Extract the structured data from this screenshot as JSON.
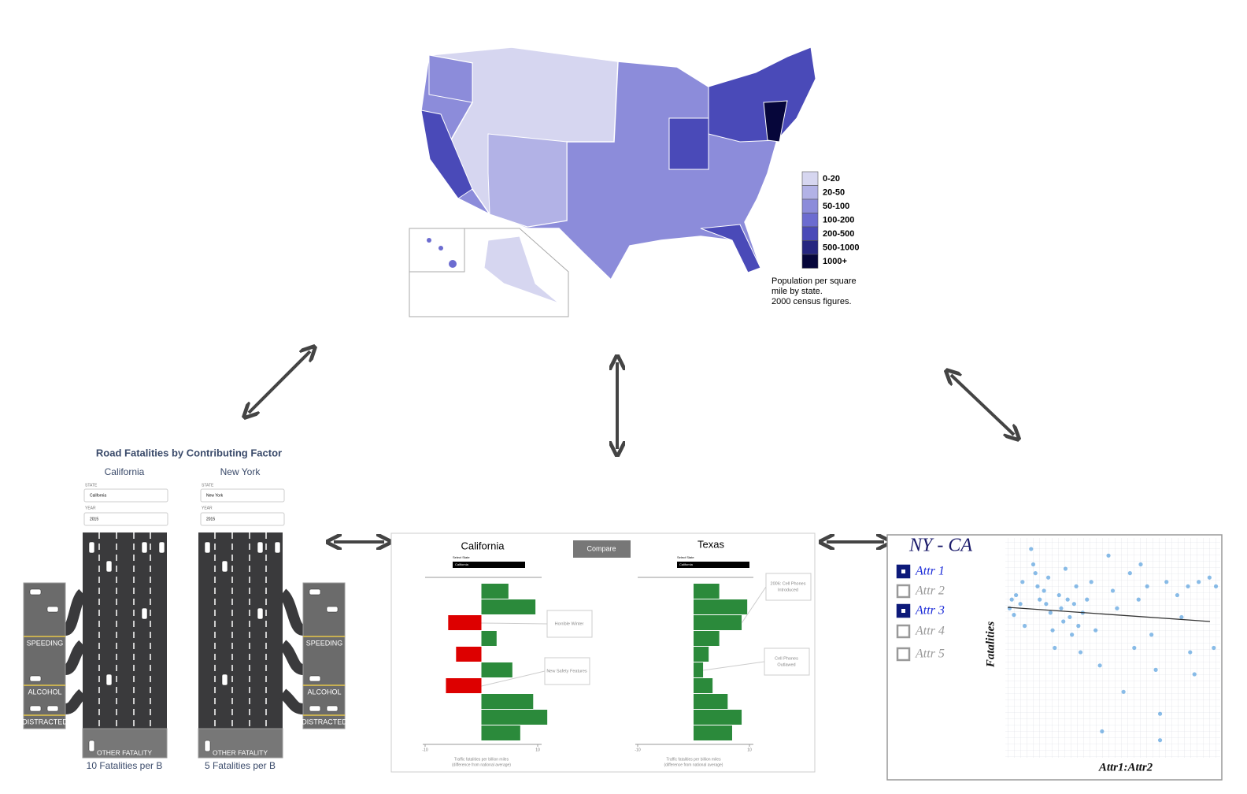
{
  "map": {
    "legend": [
      "0-20",
      "20-50",
      "50-100",
      "100-200",
      "200-500",
      "500-1000",
      "1000+"
    ],
    "legend_colors": [
      "#d6d6f0",
      "#b2b2e6",
      "#8c8cda",
      "#6c6cd0",
      "#4a4ab8",
      "#262680",
      "#06063a"
    ],
    "caption": [
      "Population per square",
      "mile by state.",
      "2000 census figures."
    ]
  },
  "road_panel": {
    "title": "Road Fatalities by Contributing Factor",
    "states": [
      {
        "name": "California",
        "state_label": "STATE",
        "state_value": "California",
        "year_label": "YEAR",
        "year_value": "2015",
        "lanes": [
          "SPEEDING",
          "ALCOHOL",
          "DISTRACTED"
        ],
        "other": "OTHER FATALITY",
        "footer": "10 Fatalities per B"
      },
      {
        "name": "New York",
        "state_label": "STATE",
        "state_value": "New York",
        "year_label": "YEAR",
        "year_value": "2015",
        "lanes": [
          "SPEEDING",
          "ALCOHOL",
          "DISTRACTED"
        ],
        "other": "OTHER FATALITY",
        "footer": "5 Fatalities per B"
      }
    ]
  },
  "compare_panel": {
    "button": "Compare",
    "positive_color": "#2b8a3b",
    "negative_color": "#dd0000",
    "charts": [
      {
        "title": "California",
        "select_label": "Select State",
        "select_value": "California",
        "values": [
          4.8,
          9.6,
          -5.9,
          2.7,
          -4.5,
          5.5,
          -6.3,
          9.2,
          11.7,
          6.9
        ],
        "annotations": [
          {
            "text": [
              "Horrible Winter"
            ],
            "bar": 2
          },
          {
            "text": [
              "New Safety Features"
            ],
            "bar": 6
          }
        ],
        "xlim": [
          -10,
          10
        ],
        "xticks": [
          -10,
          10
        ],
        "axis_label": [
          "Traffic fatalities per billion miles",
          "(difference from national average)"
        ]
      },
      {
        "title": "Texas",
        "select_label": "Select State",
        "select_value": "California",
        "values": [
          4.6,
          9.6,
          8.6,
          4.6,
          2.7,
          1.7,
          3.4,
          6.1,
          8.6,
          6.9
        ],
        "annotations": [
          {
            "text": [
              "2006: Cell Phones",
              "Introduced"
            ],
            "bar": 2
          },
          {
            "text": [
              "Cell Phones",
              "Outlawed"
            ],
            "bar": 5
          }
        ],
        "xlim": [
          -10,
          10
        ],
        "xticks": [
          -10,
          10
        ],
        "axis_label": [
          "Traffic fatalities per billion miles",
          "(difference from national average)"
        ]
      }
    ]
  },
  "scatter_panel": {
    "title": "NY - CA",
    "attrs": [
      {
        "label": "Attr 1",
        "checked": true
      },
      {
        "label": "Attr 2",
        "checked": false
      },
      {
        "label": "Attr 3",
        "checked": true
      },
      {
        "label": "Attr 4",
        "checked": false
      },
      {
        "label": "Attr 5",
        "checked": false
      }
    ],
    "ylabel": "Fatalities",
    "xlabel": "Attr1:Attr2",
    "color": "#3a8fd8",
    "points": [
      [
        2,
        68
      ],
      [
        3,
        72
      ],
      [
        4,
        65
      ],
      [
        5,
        74
      ],
      [
        7,
        70
      ],
      [
        8,
        80
      ],
      [
        9,
        60
      ],
      [
        12,
        95
      ],
      [
        13,
        88
      ],
      [
        14,
        84
      ],
      [
        15,
        78
      ],
      [
        16,
        72
      ],
      [
        18,
        76
      ],
      [
        19,
        70
      ],
      [
        20,
        82
      ],
      [
        21,
        66
      ],
      [
        22,
        58
      ],
      [
        23,
        50
      ],
      [
        25,
        74
      ],
      [
        26,
        68
      ],
      [
        27,
        62
      ],
      [
        28,
        86
      ],
      [
        29,
        72
      ],
      [
        30,
        64
      ],
      [
        31,
        56
      ],
      [
        32,
        70
      ],
      [
        33,
        78
      ],
      [
        34,
        60
      ],
      [
        35,
        48
      ],
      [
        36,
        66
      ],
      [
        38,
        72
      ],
      [
        40,
        80
      ],
      [
        42,
        58
      ],
      [
        44,
        42
      ],
      [
        45,
        12
      ],
      [
        48,
        92
      ],
      [
        50,
        76
      ],
      [
        52,
        68
      ],
      [
        55,
        30
      ],
      [
        58,
        84
      ],
      [
        60,
        50
      ],
      [
        62,
        72
      ],
      [
        63,
        88
      ],
      [
        66,
        78
      ],
      [
        68,
        56
      ],
      [
        70,
        40
      ],
      [
        72,
        20
      ],
      [
        72,
        8
      ],
      [
        75,
        80
      ],
      [
        80,
        74
      ],
      [
        82,
        64
      ],
      [
        85,
        78
      ],
      [
        86,
        48
      ],
      [
        88,
        38
      ],
      [
        90,
        80
      ],
      [
        95,
        82
      ],
      [
        97,
        50
      ],
      [
        98,
        78
      ]
    ]
  }
}
